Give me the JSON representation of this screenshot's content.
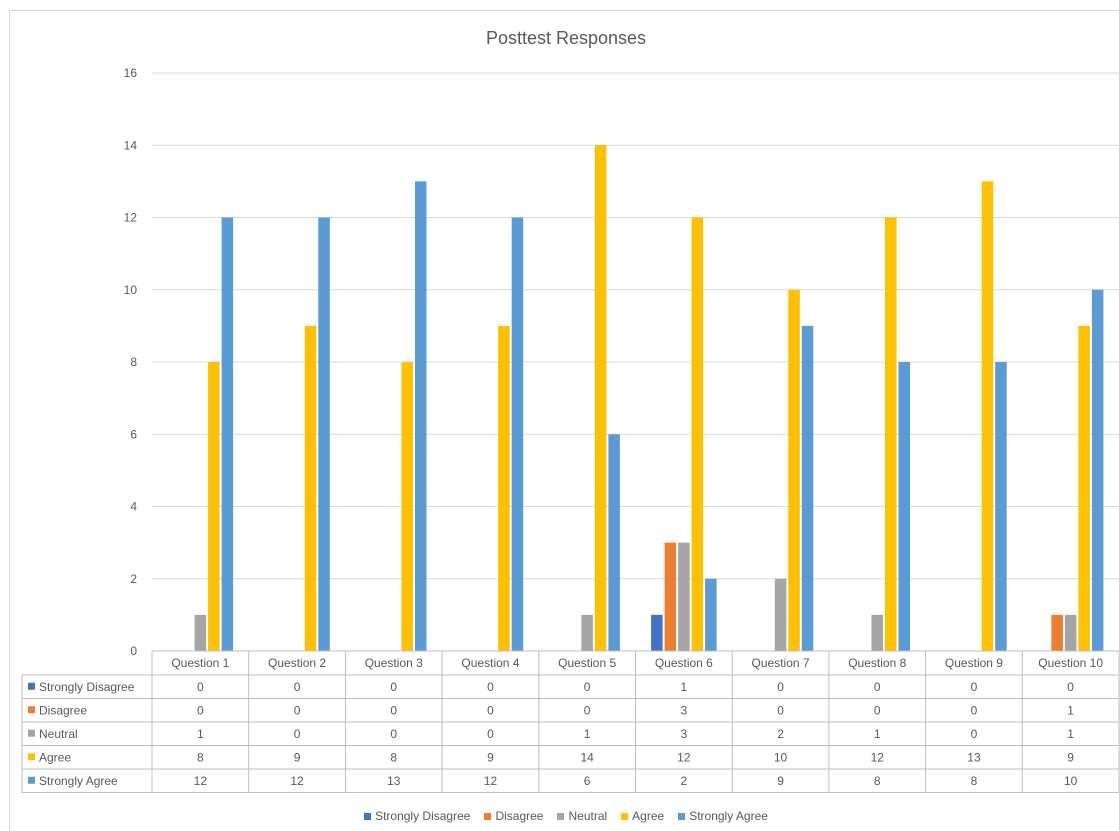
{
  "chart_data": {
    "type": "bar",
    "title": "Posttest Responses",
    "xlabel": "",
    "ylabel": "",
    "ylim": [
      0,
      16
    ],
    "yticks": [
      0,
      2,
      4,
      6,
      8,
      10,
      12,
      14,
      16
    ],
    "grid": true,
    "legend_position": "bottom",
    "categories": [
      "Question 1",
      "Question 2",
      "Question 3",
      "Question 4",
      "Question 5",
      "Question 6",
      "Question 7",
      "Question 8",
      "Question 9",
      "Question 10"
    ],
    "series": [
      {
        "name": "Strongly Disagree",
        "color": "#4472c4",
        "values": [
          0,
          0,
          0,
          0,
          0,
          1,
          0,
          0,
          0,
          0
        ]
      },
      {
        "name": "Disagree",
        "color": "#ed7d31",
        "values": [
          0,
          0,
          0,
          0,
          0,
          3,
          0,
          0,
          0,
          1
        ]
      },
      {
        "name": "Neutral",
        "color": "#a5a5a5",
        "values": [
          1,
          0,
          0,
          0,
          1,
          3,
          2,
          1,
          0,
          1
        ]
      },
      {
        "name": "Agree",
        "color": "#ffc000",
        "values": [
          8,
          9,
          8,
          9,
          14,
          12,
          10,
          12,
          13,
          9
        ]
      },
      {
        "name": "Strongly Agree",
        "color": "#5b9bd5",
        "values": [
          12,
          12,
          13,
          12,
          6,
          2,
          9,
          8,
          8,
          10
        ]
      }
    ]
  }
}
